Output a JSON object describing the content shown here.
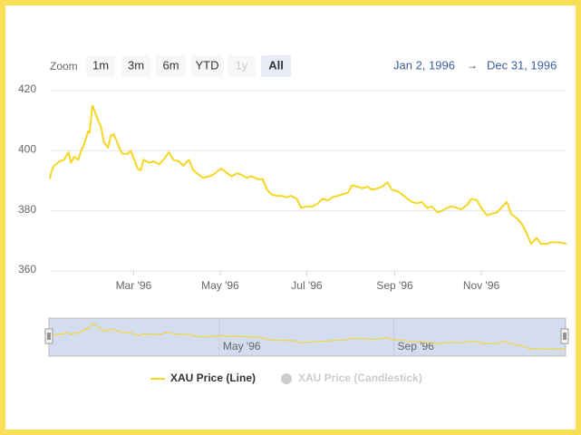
{
  "chart_data": {
    "type": "line",
    "range_selector": {
      "label": "Zoom",
      "buttons": [
        "1m",
        "3m",
        "6m",
        "YTD",
        "1y",
        "All"
      ],
      "selected": 5,
      "disabled": [
        4
      ],
      "from": "Jan 2, 1996",
      "separator": "→",
      "to": "Dec 31, 1996"
    },
    "x": [
      "1996-01-02",
      "1996-01-03",
      "1996-01-05",
      "1996-01-09",
      "1996-01-12",
      "1996-01-15",
      "1996-01-17",
      "1996-01-19",
      "1996-01-22",
      "1996-01-24",
      "1996-01-26",
      "1996-01-29",
      "1996-01-30",
      "1996-02-01",
      "1996-02-02",
      "1996-02-05",
      "1996-02-07",
      "1996-02-09",
      "1996-02-12",
      "1996-02-14",
      "1996-02-16",
      "1996-02-20",
      "1996-02-22",
      "1996-02-26",
      "1996-02-28",
      "1996-03-01",
      "1996-03-04",
      "1996-03-06",
      "1996-03-08",
      "1996-03-12",
      "1996-03-15",
      "1996-03-19",
      "1996-03-22",
      "1996-03-26",
      "1996-03-29",
      "1996-04-02",
      "1996-04-05",
      "1996-04-09",
      "1996-04-12",
      "1996-04-16",
      "1996-04-19",
      "1996-04-23",
      "1996-04-26",
      "1996-04-30",
      "1996-05-02",
      "1996-05-06",
      "1996-05-09",
      "1996-05-13",
      "1996-05-16",
      "1996-05-20",
      "1996-05-23",
      "1996-05-28",
      "1996-05-31",
      "1996-06-03",
      "1996-06-06",
      "1996-06-10",
      "1996-06-13",
      "1996-06-17",
      "1996-06-20",
      "1996-06-24",
      "1996-06-27",
      "1996-07-01",
      "1996-07-05",
      "1996-07-09",
      "1996-07-12",
      "1996-07-16",
      "1996-07-19",
      "1996-07-23",
      "1996-07-26",
      "1996-07-30",
      "1996-08-02",
      "1996-08-06",
      "1996-08-09",
      "1996-08-13",
      "1996-08-16",
      "1996-08-20",
      "1996-08-23",
      "1996-08-27",
      "1996-08-30",
      "1996-09-03",
      "1996-09-06",
      "1996-09-10",
      "1996-09-13",
      "1996-09-17",
      "1996-09-20",
      "1996-09-24",
      "1996-09-27",
      "1996-10-01",
      "1996-10-04",
      "1996-10-08",
      "1996-10-11",
      "1996-10-15",
      "1996-10-18",
      "1996-10-22",
      "1996-10-25",
      "1996-10-29",
      "1996-11-01",
      "1996-11-05",
      "1996-11-08",
      "1996-11-12",
      "1996-11-15",
      "1996-11-19",
      "1996-11-22",
      "1996-11-26",
      "1996-11-29",
      "1996-12-03",
      "1996-12-06",
      "1996-12-10",
      "1996-12-13",
      "1996-12-17",
      "1996-12-20",
      "1996-12-24",
      "1996-12-27",
      "1996-12-31"
    ],
    "series": [
      {
        "name": "XAU Price (Line)",
        "color": "#f5d623",
        "values": [
          390.7,
          393,
          395,
          396.5,
          397,
          399.5,
          396,
          398,
          397,
          400,
          402,
          406.5,
          406,
          415,
          414,
          410,
          408,
          403,
          401,
          405,
          405.5,
          401,
          399,
          399,
          400,
          397.5,
          394,
          393.5,
          397,
          396,
          396.5,
          395.5,
          397,
          399.5,
          397,
          396.5,
          395,
          397,
          393.5,
          392,
          391,
          391.5,
          392,
          393.5,
          394,
          392.5,
          391.5,
          392.5,
          392,
          391,
          391.5,
          390.5,
          390.5,
          387,
          385.5,
          385,
          385,
          384.5,
          385,
          384,
          381,
          381.5,
          381.5,
          382.5,
          384,
          383.5,
          384.5,
          385,
          385.5,
          386,
          388.5,
          388,
          387.5,
          388,
          387,
          387.5,
          388,
          389.5,
          387,
          386.5,
          385.5,
          384,
          383,
          382.5,
          383,
          381,
          381.5,
          379.5,
          380,
          381,
          381.5,
          381,
          380.5,
          382,
          384,
          383.5,
          381,
          378.5,
          379,
          379.5,
          381,
          383,
          379,
          377.5,
          376,
          372.5,
          369,
          371,
          369,
          369,
          369.5,
          369.5,
          369.5,
          369
        ]
      },
      {
        "name": "XAU Price (Candlestick)",
        "color": "#cccccc",
        "visible": false
      }
    ],
    "xlim": [
      "1996-01-02",
      "1996-12-31"
    ],
    "xticks": [
      {
        "value": "1996-03-01",
        "label": "Mar '96"
      },
      {
        "value": "1996-05-01",
        "label": "May '96"
      },
      {
        "value": "1996-07-01",
        "label": "Jul '96"
      },
      {
        "value": "1996-09-01",
        "label": "Sep '96"
      },
      {
        "value": "1996-11-01",
        "label": "Nov '96"
      }
    ],
    "ylim": [
      360,
      420
    ],
    "yticks": [
      360,
      380,
      400,
      420
    ],
    "grid": true,
    "navigator_xticks": [
      {
        "value": "1996-05-01",
        "label": "May '96"
      },
      {
        "value": "1996-09-01",
        "label": "Sep '96"
      }
    ]
  }
}
